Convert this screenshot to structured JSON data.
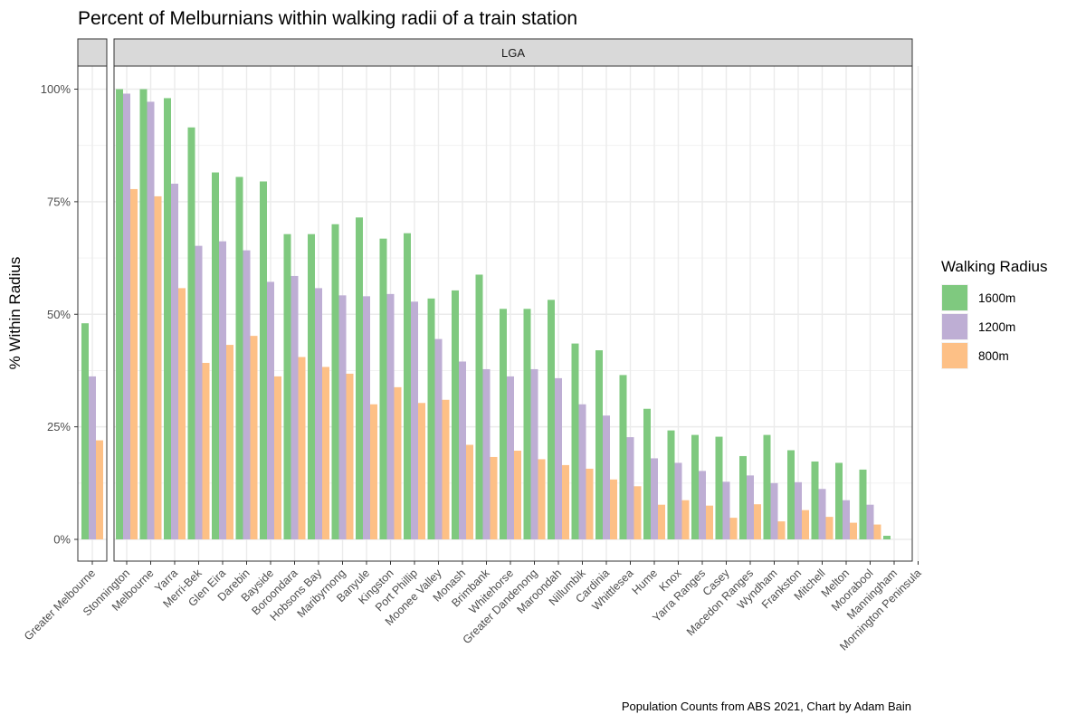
{
  "chart_data": {
    "type": "bar",
    "title": "Percent of Melburnians within walking radii of a train station",
    "ylabel": "% Within Radius",
    "xlabel": "",
    "caption": "Population Counts from ABS 2021, Chart by Adam Bain",
    "ylim": [
      -0.05,
      1.06
    ],
    "yticks": [
      0,
      0.25,
      0.5,
      0.75,
      1.0
    ],
    "ytick_labels": [
      "0%",
      "25%",
      "50%",
      "75%",
      "100%"
    ],
    "grid": true,
    "legend": {
      "title": "Walking Radius",
      "position": "right"
    },
    "facets": [
      {
        "label": "",
        "categories": [
          "Greater Melbourne"
        ]
      },
      {
        "label": "LGA",
        "categories": [
          "Stonnington",
          "Melbourne",
          "Yarra",
          "Merri-Bek",
          "Glen Eira",
          "Darebin",
          "Bayside",
          "Boroondara",
          "Hobsons Bay",
          "Maribyrnong",
          "Banyule",
          "Kingston",
          "Port Phillip",
          "Moonee Valley",
          "Monash",
          "Brimbank",
          "Whitehorse",
          "Greater Dandenong",
          "Maroondah",
          "Nillumbik",
          "Cardinia",
          "Whittlesea",
          "Hume",
          "Knox",
          "Yarra Ranges",
          "Casey",
          "Macedon Ranges",
          "Wyndham",
          "Frankston",
          "Mitchell",
          "Melton",
          "Moorabool",
          "Manningham",
          "Mornington Peninsula"
        ]
      }
    ],
    "categories": [
      "Greater Melbourne",
      "Stonnington",
      "Melbourne",
      "Yarra",
      "Merri-Bek",
      "Glen Eira",
      "Darebin",
      "Bayside",
      "Boroondara",
      "Hobsons Bay",
      "Maribyrnong",
      "Banyule",
      "Kingston",
      "Port Phillip",
      "Moonee Valley",
      "Monash",
      "Brimbank",
      "Whitehorse",
      "Greater Dandenong",
      "Maroondah",
      "Nillumbik",
      "Cardinia",
      "Whittlesea",
      "Hume",
      "Knox",
      "Yarra Ranges",
      "Casey",
      "Macedon Ranges",
      "Wyndham",
      "Frankston",
      "Mitchell",
      "Melton",
      "Moorabool",
      "Manningham",
      "Mornington Peninsula"
    ],
    "series": [
      {
        "name": "1600m",
        "color": "#7fc97f",
        "values": [
          0.48,
          1.0,
          1.0,
          0.98,
          0.915,
          0.815,
          0.805,
          0.795,
          0.678,
          0.678,
          0.7,
          0.715,
          0.668,
          0.68,
          0.535,
          0.553,
          0.588,
          0.512,
          0.512,
          0.532,
          0.435,
          0.42,
          0.365,
          0.29,
          0.242,
          0.232,
          0.228,
          0.185,
          0.232,
          0.198,
          0.173,
          0.17,
          0.155,
          0.008,
          0
        ]
      },
      {
        "name": "1200m",
        "color": "#beaed4",
        "values": [
          0.362,
          0.99,
          0.972,
          0.79,
          0.652,
          0.662,
          0.642,
          0.572,
          0.585,
          0.558,
          0.542,
          0.54,
          0.545,
          0.528,
          0.445,
          0.395,
          0.378,
          0.362,
          0.378,
          0.358,
          0.3,
          0.275,
          0.227,
          0.18,
          0.17,
          0.152,
          0.128,
          0.142,
          0.125,
          0.127,
          0.112,
          0.087,
          0.077,
          0,
          0
        ]
      },
      {
        "name": "800m",
        "color": "#fdc086",
        "values": [
          0.22,
          0.778,
          0.762,
          0.558,
          0.392,
          0.432,
          0.452,
          0.362,
          0.405,
          0.383,
          0.368,
          0.3,
          0.338,
          0.303,
          0.31,
          0.21,
          0.183,
          0.197,
          0.178,
          0.165,
          0.157,
          0.133,
          0.118,
          0.077,
          0.087,
          0.075,
          0.048,
          0.078,
          0.04,
          0.065,
          0.05,
          0.037,
          0.033,
          0,
          0
        ]
      }
    ]
  }
}
